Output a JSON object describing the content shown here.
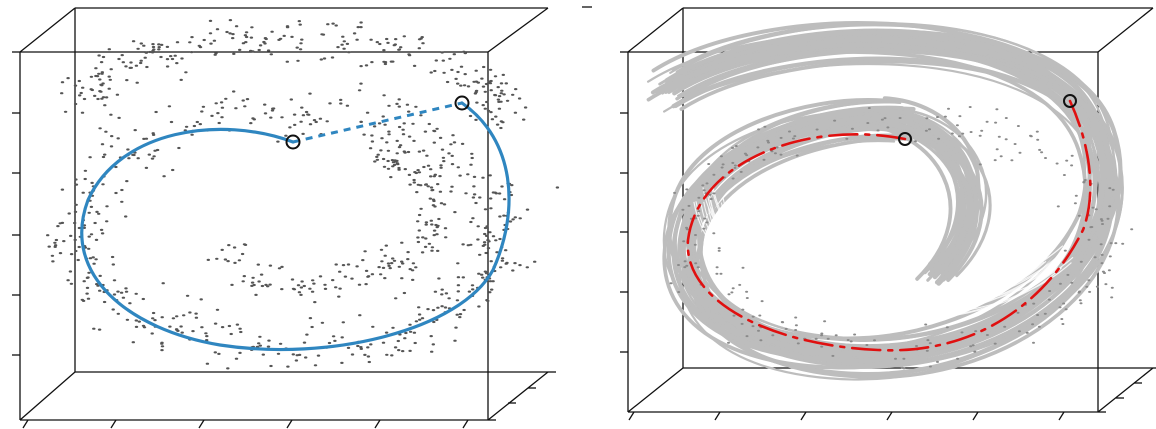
{
  "figure": {
    "panels": [
      {
        "id": "left",
        "point_color": "#555555",
        "curve_color": "#2f86c0",
        "marker_color": "#111111",
        "seed": 7
      },
      {
        "id": "right",
        "ribbon_color": "#bdbdbd",
        "ribbon_highlight": "#ffffff",
        "point_color": "#8a8a8a",
        "path_color": "#e01010",
        "marker_color": "#111111",
        "seed": 13
      }
    ],
    "box_color": "#111111"
  }
}
